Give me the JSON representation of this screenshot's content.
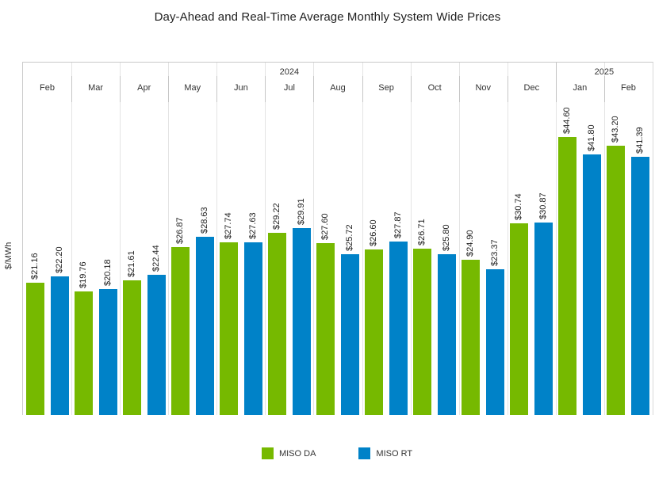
{
  "chart_data": {
    "type": "bar",
    "title": "Day-Ahead and Real-Time Average Monthly System Wide Prices",
    "ylabel": "$/MWh",
    "xlabel": "",
    "categories": [
      "Feb",
      "Mar",
      "Apr",
      "May",
      "Jun",
      "Jul",
      "Aug",
      "Sep",
      "Oct",
      "Nov",
      "Dec",
      "Jan",
      "Feb"
    ],
    "year_groups": [
      {
        "label": "2024",
        "start": 0,
        "count": 11
      },
      {
        "label": "2025",
        "start": 11,
        "count": 2
      }
    ],
    "series": [
      {
        "name": "MISO DA",
        "color": "#76b900",
        "values": [
          21.16,
          19.76,
          21.61,
          26.87,
          27.74,
          29.22,
          27.6,
          26.6,
          26.71,
          24.9,
          30.74,
          44.6,
          43.2
        ]
      },
      {
        "name": "MISO RT",
        "color": "#0082c8",
        "values": [
          22.2,
          20.18,
          22.44,
          28.63,
          27.63,
          29.91,
          25.72,
          27.87,
          25.8,
          23.37,
          30.87,
          41.8,
          41.39
        ]
      }
    ],
    "value_label_prefix": "$",
    "ylim": [
      0,
      56.5
    ],
    "grid": "vertical-column-separators",
    "legend_position": "bottom"
  }
}
